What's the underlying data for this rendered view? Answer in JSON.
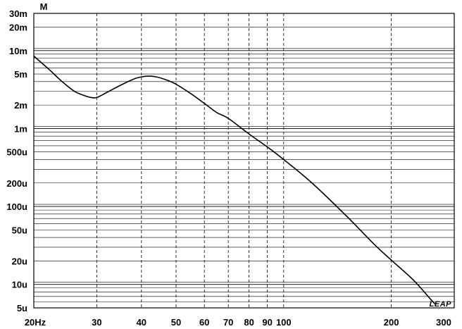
{
  "chart_data": {
    "type": "line",
    "title": "",
    "xlabel": "",
    "ylabel": "",
    "unit_label": "M",
    "watermark": "LEAP",
    "x_scale": "log",
    "y_scale": "log",
    "xlim": [
      20,
      300
    ],
    "ylim": [
      5e-06,
      0.03
    ],
    "grid": true,
    "x_ticks": [
      {
        "value": 20,
        "label": "20Hz"
      },
      {
        "value": 30,
        "label": "30"
      },
      {
        "value": 40,
        "label": "40"
      },
      {
        "value": 50,
        "label": "50"
      },
      {
        "value": 60,
        "label": "60"
      },
      {
        "value": 70,
        "label": "70"
      },
      {
        "value": 80,
        "label": "80"
      },
      {
        "value": 90,
        "label": "90"
      },
      {
        "value": 100,
        "label": "100"
      },
      {
        "value": 200,
        "label": "200"
      },
      {
        "value": 300,
        "label": "300"
      }
    ],
    "y_ticks": [
      {
        "value": 0.03,
        "label": "30m"
      },
      {
        "value": 0.02,
        "label": "20m"
      },
      {
        "value": 0.01,
        "label": "10m"
      },
      {
        "value": 0.005,
        "label": "5m"
      },
      {
        "value": 0.002,
        "label": "2m"
      },
      {
        "value": 0.001,
        "label": "1m"
      },
      {
        "value": 0.0005,
        "label": "500u"
      },
      {
        "value": 0.0002,
        "label": "200u"
      },
      {
        "value": 0.0001,
        "label": "100u"
      },
      {
        "value": 5e-05,
        "label": "50u"
      },
      {
        "value": 2e-05,
        "label": "20u"
      },
      {
        "value": 1e-05,
        "label": "10u"
      },
      {
        "value": 5e-06,
        "label": "5u"
      }
    ],
    "series": [
      {
        "color": "#000000",
        "points": [
          [
            20,
            0.0085
          ],
          [
            22,
            0.0058
          ],
          [
            24,
            0.004
          ],
          [
            26,
            0.003
          ],
          [
            28,
            0.0026
          ],
          [
            29,
            0.0025
          ],
          [
            30,
            0.0025
          ],
          [
            32,
            0.0029
          ],
          [
            35,
            0.0036
          ],
          [
            38,
            0.0043
          ],
          [
            40,
            0.0046
          ],
          [
            42,
            0.0047
          ],
          [
            44,
            0.0046
          ],
          [
            47,
            0.0042
          ],
          [
            50,
            0.0037
          ],
          [
            55,
            0.0028
          ],
          [
            60,
            0.0021
          ],
          [
            65,
            0.0016
          ],
          [
            70,
            0.00135
          ],
          [
            80,
            0.00085
          ],
          [
            90,
            0.00058
          ],
          [
            100,
            0.0004
          ],
          [
            120,
            0.0002
          ],
          [
            150,
            7.5e-05
          ],
          [
            180,
            3.2e-05
          ],
          [
            200,
            2.05e-05
          ],
          [
            230,
            1.15e-05
          ],
          [
            255,
            6.8e-06
          ],
          [
            265,
            5.6e-06
          ]
        ]
      }
    ]
  }
}
